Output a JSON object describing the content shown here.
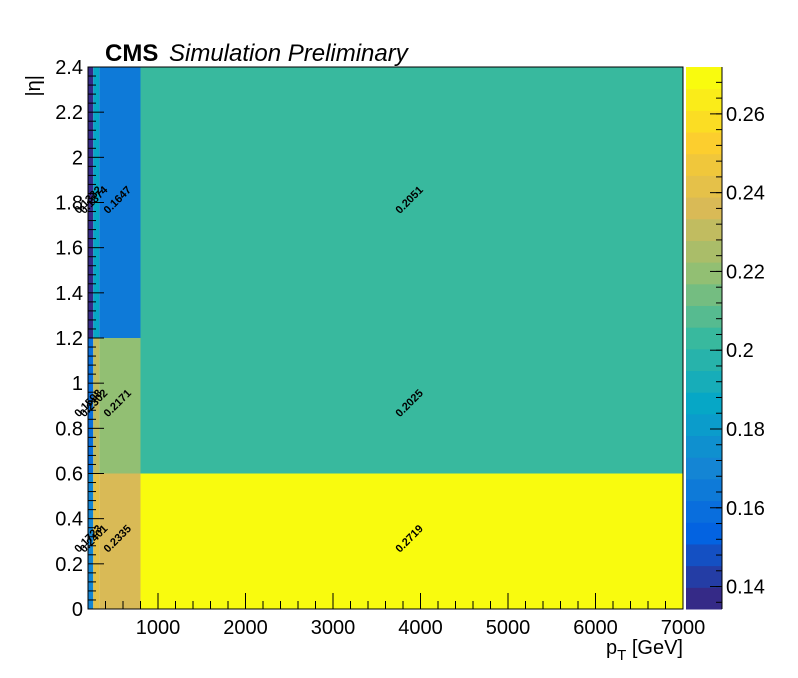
{
  "header": {
    "experiment": "CMS",
    "status": "Simulation Preliminary"
  },
  "chart_data": {
    "type": "heatmap",
    "xlabel": "p_T [GeV]",
    "ylabel": "|η|",
    "xlim": [
      200,
      7000
    ],
    "ylim": [
      0,
      2.4
    ],
    "x_ticks": [
      1000,
      2000,
      3000,
      4000,
      5000,
      6000,
      7000
    ],
    "y_ticks": [
      "0",
      "0.2",
      "0.4",
      "0.6",
      "0.8",
      "1",
      "1.2",
      "1.4",
      "1.6",
      "1.8",
      "2",
      "2.2",
      "2.4"
    ],
    "x_bin_edges": [
      200,
      260,
      330,
      800,
      7000
    ],
    "y_bin_edges": [
      0,
      0.6,
      1.2,
      2.4
    ],
    "values": [
      [
        0.1723,
        0.2401,
        0.2335,
        0.2719
      ],
      [
        0.1598,
        0.2302,
        0.2171,
        0.2025
      ],
      [
        0.1332,
        0.1874,
        0.1647,
        0.2051
      ]
    ],
    "labels": [
      [
        "0.1723",
        "0.2401",
        "0.2335",
        "0.2719"
      ],
      [
        "0.1598",
        "0.2302",
        "0.2171",
        "0.2025"
      ],
      [
        "0.1332",
        "0.1874",
        "0.1647",
        "0.2051"
      ]
    ],
    "colorbar": {
      "range": [
        0.1343,
        0.2719
      ],
      "ticks": [
        "0.14",
        "0.16",
        "0.18",
        "0.2",
        "0.22",
        "0.24",
        "0.26"
      ],
      "tick_values": [
        0.14,
        0.16,
        0.18,
        0.2,
        0.22,
        0.24,
        0.26
      ],
      "steps": 25
    },
    "colormap": [
      "#352a87",
      "#0363e1",
      "#1485d4",
      "#06a7c6",
      "#38b99e",
      "#92bf73",
      "#d9ba56",
      "#fcce2e",
      "#f9fb0e"
    ],
    "grid": false
  }
}
